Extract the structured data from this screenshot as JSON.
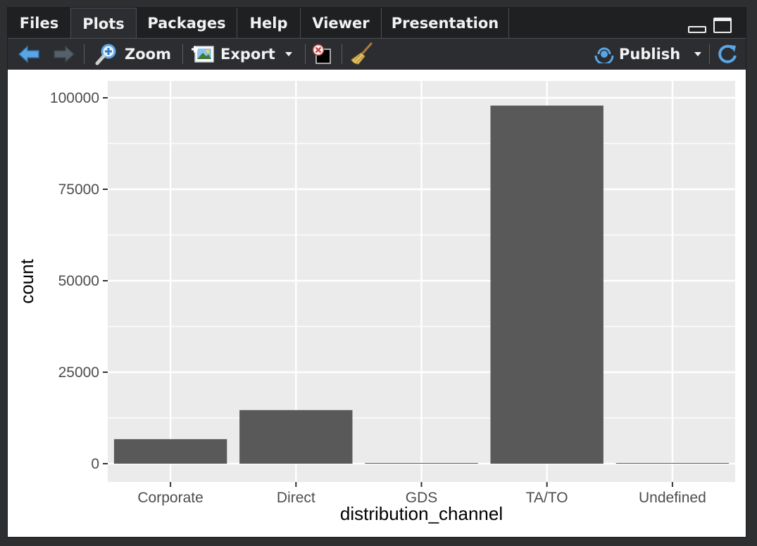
{
  "tabs": [
    {
      "label": "Files"
    },
    {
      "label": "Plots"
    },
    {
      "label": "Packages"
    },
    {
      "label": "Help"
    },
    {
      "label": "Viewer"
    },
    {
      "label": "Presentation"
    }
  ],
  "toolbar": {
    "zoom_label": "Zoom",
    "export_label": "Export",
    "publish_label": "Publish"
  },
  "colors": {
    "panel_bg": "#2b2d30",
    "plot_bg": "#ebebeb",
    "bar_fill": "#595959",
    "accent_blue": "#5aa5e6"
  },
  "chart_data": {
    "type": "bar",
    "categories": [
      "Corporate",
      "Direct",
      "GDS",
      "TA/TO",
      "Undefined"
    ],
    "values": [
      6700,
      14650,
      190,
      97870,
      5
    ],
    "xlabel": "distribution_channel",
    "ylabel": "count",
    "ylim": [
      0,
      100000
    ],
    "yticks": [
      0,
      25000,
      50000,
      75000,
      100000
    ],
    "ytick_labels": [
      "0",
      "25000",
      "50000",
      "75000",
      "100000"
    ],
    "grid": true
  }
}
